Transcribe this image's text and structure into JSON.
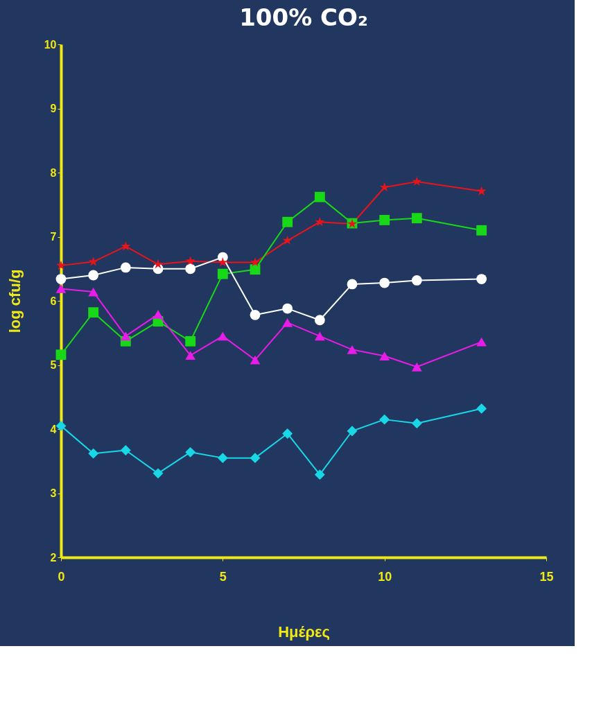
{
  "chart_data": {
    "type": "line",
    "title": "100% CO₂",
    "xlabel": "Ημέρες",
    "ylabel": "log cfu/g",
    "x": [
      0,
      1,
      2,
      3,
      4,
      5,
      6,
      7,
      8,
      9,
      10,
      11,
      13
    ],
    "xlim": [
      0,
      15
    ],
    "xticks": [
      0,
      5,
      10,
      15
    ],
    "ylim": [
      2,
      10
    ],
    "yticks": [
      2,
      3,
      4,
      5,
      6,
      7,
      8,
      9,
      10
    ],
    "grid": false,
    "line_style": "solid",
    "series": [
      {
        "color": "#e8141c",
        "marker": "star",
        "values": [
          6.55,
          6.61,
          6.85,
          6.57,
          6.62,
          6.6,
          6.6,
          6.94,
          7.23,
          7.2,
          7.77,
          7.86,
          7.71
        ]
      },
      {
        "color": "#18d818",
        "marker": "square",
        "values": [
          5.16,
          5.82,
          5.37,
          5.68,
          5.37,
          6.42,
          6.49,
          7.23,
          7.62,
          7.21,
          7.26,
          7.29,
          7.1
        ]
      },
      {
        "color": "#ffffff",
        "marker": "circle",
        "values": [
          6.34,
          6.4,
          6.52,
          6.5,
          6.5,
          6.68,
          5.78,
          5.88,
          5.7,
          6.26,
          6.28,
          6.32,
          6.34
        ]
      },
      {
        "color": "#e81ce8",
        "marker": "triangle",
        "values": [
          6.19,
          6.14,
          5.45,
          5.79,
          5.15,
          5.45,
          5.08,
          5.66,
          5.45,
          5.24,
          5.14,
          4.97,
          5.36
        ]
      },
      {
        "color": "#18d8e8",
        "marker": "diamond",
        "values": [
          4.05,
          3.62,
          3.67,
          3.31,
          3.64,
          3.55,
          3.55,
          3.93,
          3.29,
          3.97,
          4.15,
          4.09,
          4.32
        ]
      }
    ]
  }
}
